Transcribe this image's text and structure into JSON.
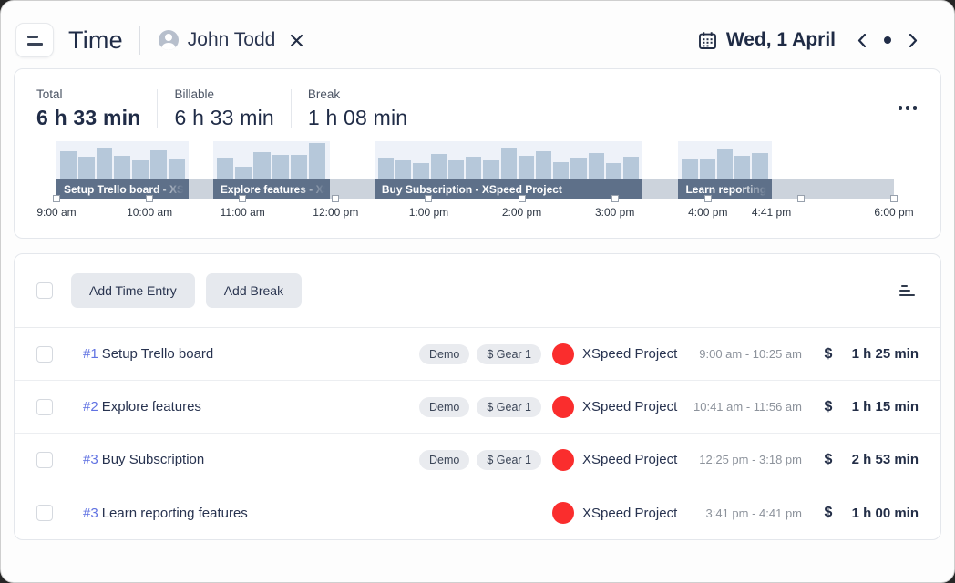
{
  "header": {
    "title": "Time",
    "user_filter": {
      "name": "John Todd"
    },
    "date_nav": {
      "date_label": "Wed, 1 April"
    }
  },
  "icons": {
    "menu": "hamburger-lines",
    "user_avatar": "person-circle",
    "clear_filter": "x",
    "calendar": "calendar-grid",
    "prev_day": "chevron-left",
    "today": "dot",
    "next_day": "chevron-right",
    "more": "ellipsis",
    "sort": "sort-bars",
    "billable": "$"
  },
  "summary": {
    "stats": [
      {
        "label": "Total",
        "value": "6 h 33 min"
      },
      {
        "label": "Billable",
        "value": "6 h 33 min"
      },
      {
        "label": "Break",
        "value": "1 h 08 min"
      }
    ]
  },
  "timeline": {
    "start_min": 540,
    "end_min": 1080,
    "colors": {
      "band": "#ccd3dc",
      "segment": "#5e7089",
      "hist_bg": "#eef2f9",
      "bar": "#b6c8da"
    },
    "hour_markers": [
      540,
      600,
      660,
      720,
      780,
      840,
      900,
      960,
      1020,
      1080
    ],
    "axis_labels": [
      {
        "text": "9:00 am",
        "min": 540
      },
      {
        "text": "10:00 am",
        "min": 600
      },
      {
        "text": "11:00 am",
        "min": 660
      },
      {
        "text": "12:00 pm",
        "min": 720
      },
      {
        "text": "1:00 pm",
        "min": 780
      },
      {
        "text": "2:00 pm",
        "min": 840
      },
      {
        "text": "3:00 pm",
        "min": 900
      },
      {
        "text": "4:00 pm",
        "min": 960
      },
      {
        "text": "4:41 pm",
        "min": 1001
      },
      {
        "text": "6:00 pm",
        "min": 1080
      }
    ],
    "segments": [
      {
        "label": "Setup Trello board - XSpeed Project",
        "start_min": 540,
        "end_min": 625,
        "fade": true,
        "bars": [
          0.75,
          0.6,
          0.8,
          0.62,
          0.5,
          0.76,
          0.54
        ]
      },
      {
        "label": "Explore features - XSpeed Project",
        "start_min": 641,
        "end_min": 716,
        "fade": true,
        "bars": [
          0.58,
          0.33,
          0.72,
          0.64,
          0.64,
          0.95
        ]
      },
      {
        "label": "Buy Subscription - XSpeed Project",
        "start_min": 745,
        "end_min": 918,
        "fade": false,
        "bars": [
          0.56,
          0.5,
          0.42,
          0.66,
          0.5,
          0.6,
          0.5,
          0.8,
          0.62,
          0.74,
          0.46,
          0.58,
          0.7,
          0.44,
          0.6
        ]
      },
      {
        "label": "Learn reporting features",
        "start_min": 941,
        "end_min": 1001,
        "fade": true,
        "bars": [
          0.52,
          0.52,
          0.78,
          0.62,
          0.68
        ]
      }
    ]
  },
  "toolbar": {
    "add_time_entry_label": "Add Time Entry",
    "add_break_label": "Add Break"
  },
  "entries": [
    {
      "id": "#1",
      "title": "Setup Trello board",
      "tags": [
        "Demo",
        "$ Gear 1"
      ],
      "project": "XSpeed Project",
      "project_color": "#fa2d2d",
      "time_range": "9:00 am - 10:25 am",
      "billable": "$",
      "duration": "1 h 25 min"
    },
    {
      "id": "#2",
      "title": "Explore features",
      "tags": [
        "Demo",
        "$ Gear 1"
      ],
      "project": "XSpeed Project",
      "project_color": "#fa2d2d",
      "time_range": "10:41 am - 11:56 am",
      "billable": "$",
      "duration": "1 h 15 min"
    },
    {
      "id": "#3",
      "title": "Buy Subscription",
      "tags": [
        "Demo",
        "$ Gear 1"
      ],
      "project": "XSpeed Project",
      "project_color": "#fa2d2d",
      "time_range": "12:25 pm - 3:18 pm",
      "billable": "$",
      "duration": "2 h 53 min"
    },
    {
      "id": "#3",
      "title": "Learn reporting features",
      "tags": [],
      "project": "XSpeed Project",
      "project_color": "#fa2d2d",
      "time_range": "3:41 pm - 4:41 pm",
      "billable": "$",
      "duration": "1 h 00 min"
    }
  ]
}
